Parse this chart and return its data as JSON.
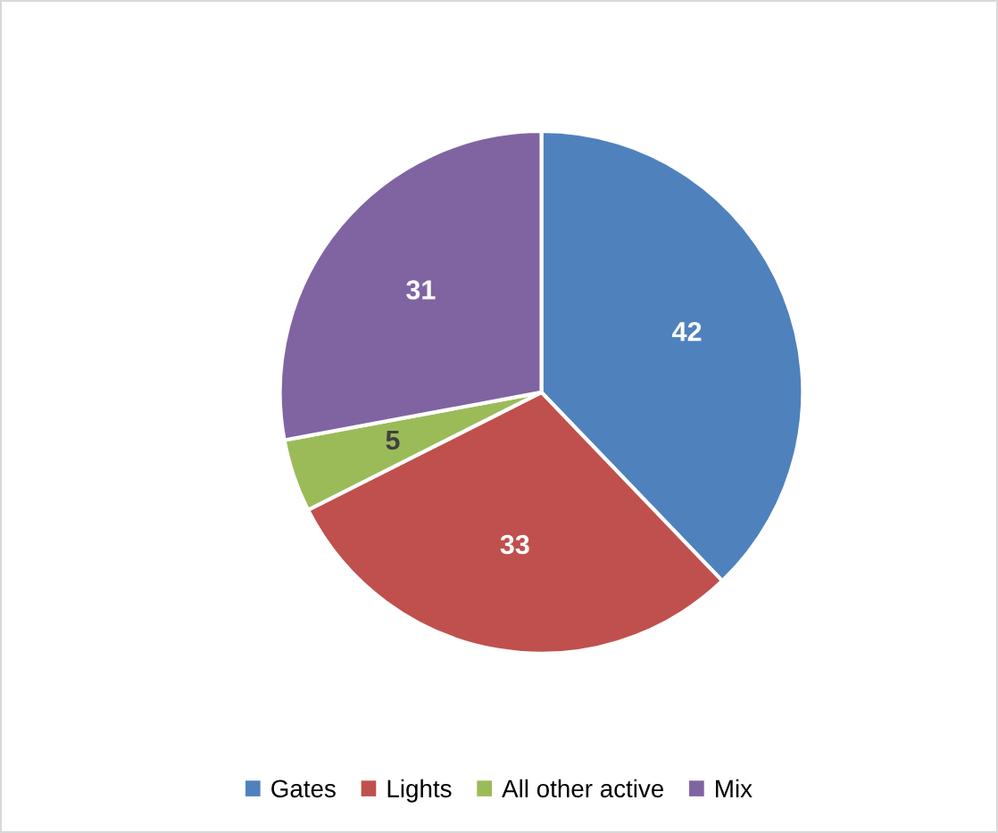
{
  "chart_data": {
    "type": "pie",
    "categories": [
      "Gates",
      "Lights",
      "All other active",
      "Mix"
    ],
    "values": [
      42,
      33,
      5,
      31
    ],
    "colors": [
      "#4f81bd",
      "#c0504d",
      "#9bbb59",
      "#8064a2"
    ],
    "data_labels": true,
    "legend": "bottom"
  }
}
